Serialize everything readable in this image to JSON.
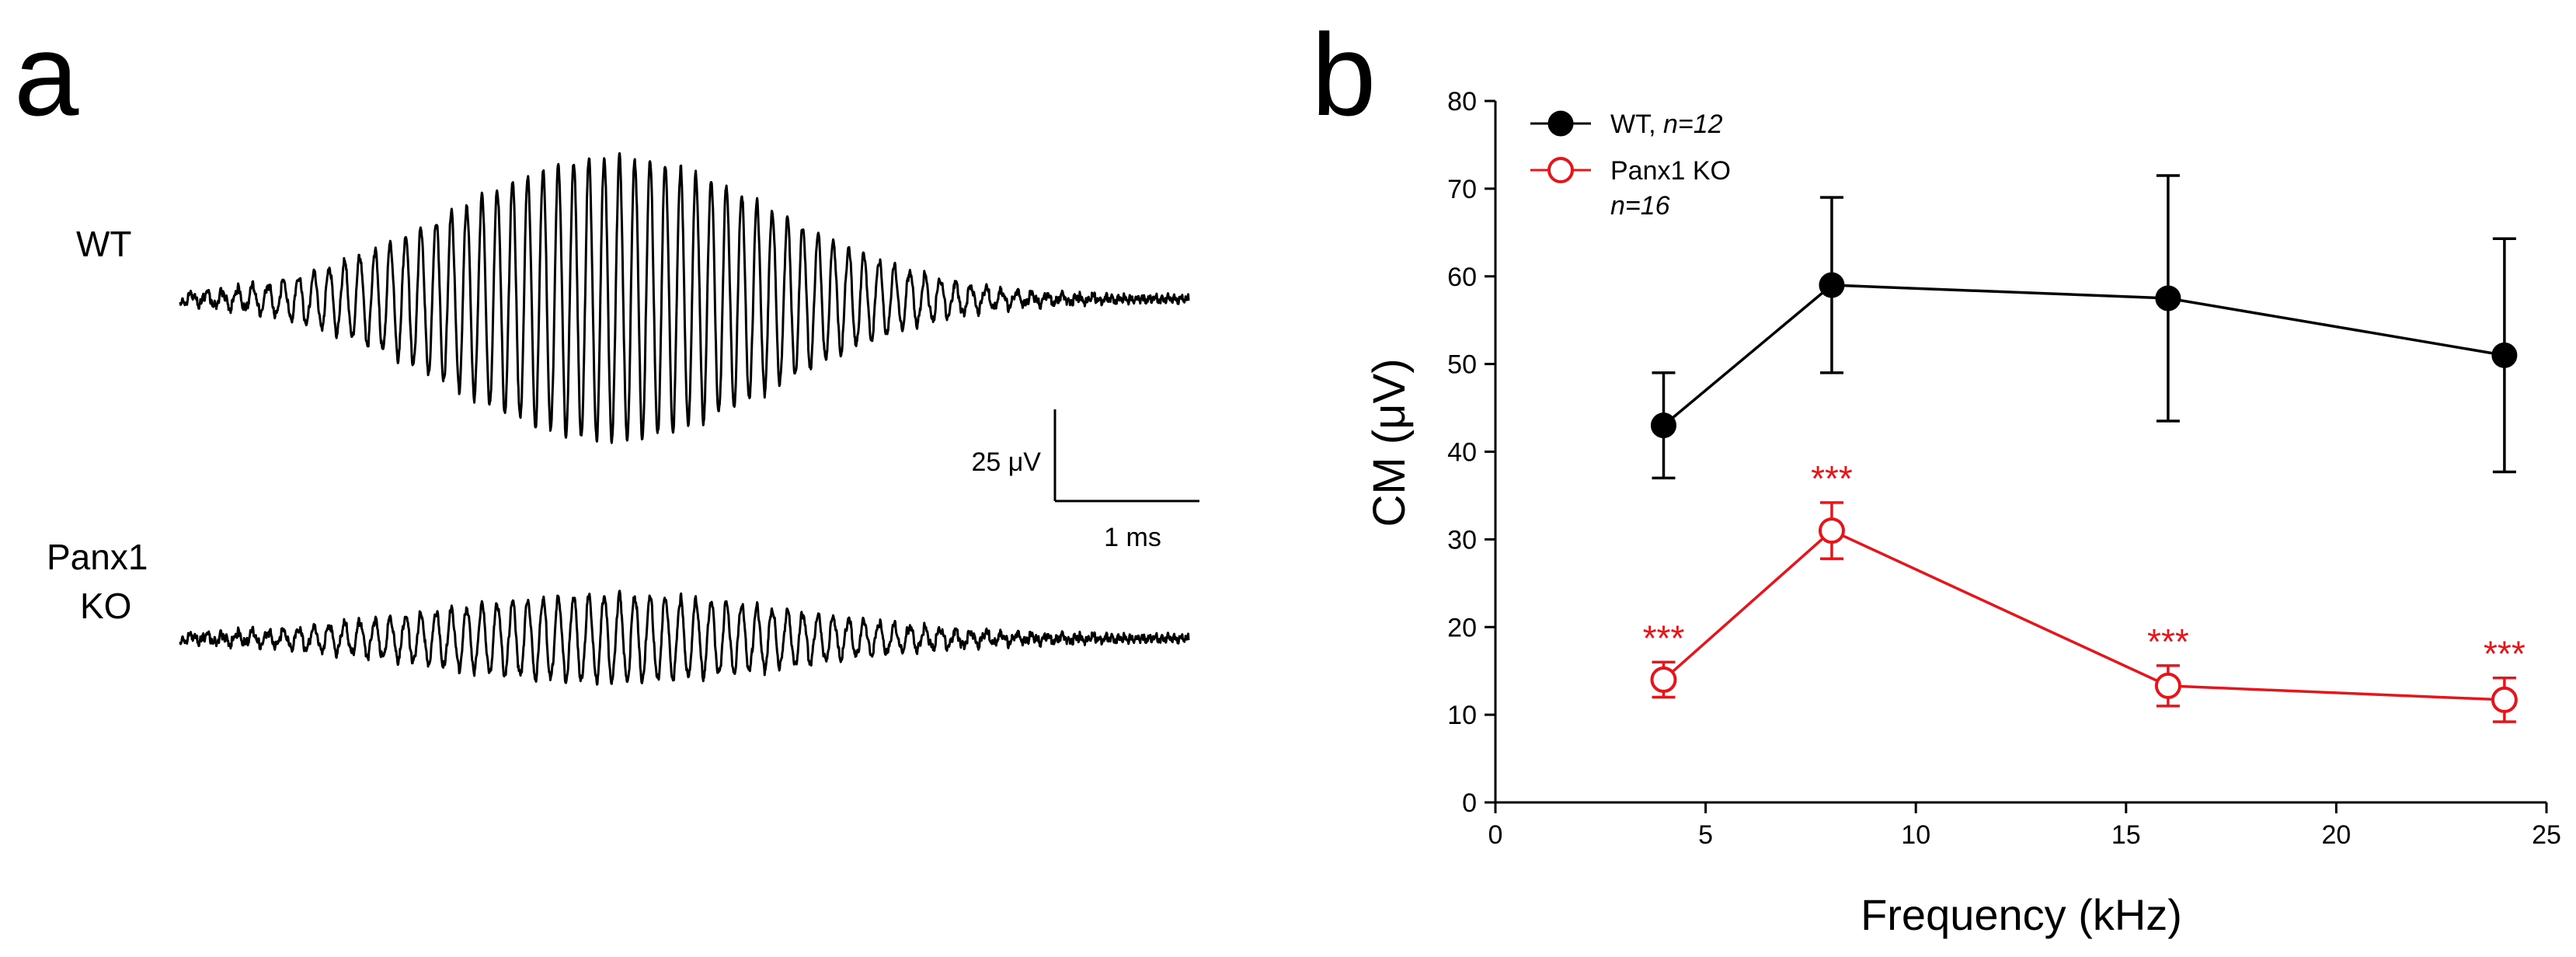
{
  "colors": {
    "wt": "#000000",
    "ko": "#e8141b"
  },
  "panel_a": {
    "label": "a",
    "wt_label": "WT",
    "ko_label_line1": "Panx1",
    "ko_label_line2": "KO",
    "scale_voltage": "25 μV",
    "scale_time": "1 ms"
  },
  "panel_b": {
    "label": "b",
    "legend_wt_name": "WT, ",
    "legend_wt_n": "n=12",
    "legend_ko_name": "Panx1 KO",
    "legend_ko_n": "n=16"
  },
  "chart_data": {
    "type": "line",
    "xlabel": "Frequency (kHz)",
    "ylabel": "CM (μV)",
    "xlim": [
      0,
      25
    ],
    "ylim": [
      0,
      80
    ],
    "xticks": [
      0,
      5,
      10,
      15,
      20,
      25
    ],
    "yticks": [
      0,
      10,
      20,
      30,
      40,
      50,
      60,
      70,
      80
    ],
    "grid": false,
    "legend_position": "top-left",
    "x": [
      4,
      8,
      16,
      24
    ],
    "series": [
      {
        "name": "WT",
        "n": "n=12",
        "color": "#000000",
        "marker": "filled-circle",
        "values": [
          43,
          59,
          57.5,
          51
        ],
        "errors": [
          6,
          10,
          14,
          13.3
        ]
      },
      {
        "name": "Panx1 KO",
        "n": "n=16",
        "color": "#e8141b",
        "marker": "open-circle",
        "values": [
          14,
          31,
          13.3,
          11.7
        ],
        "errors": [
          2,
          3.2,
          2.3,
          2.5
        ]
      }
    ],
    "annotations": [
      {
        "text": "***",
        "x": 4,
        "series": "Panx1 KO"
      },
      {
        "text": "***",
        "x": 8,
        "series": "Panx1 KO"
      },
      {
        "text": "***",
        "x": 16,
        "series": "Panx1 KO"
      },
      {
        "text": "***",
        "x": 24,
        "series": "Panx1 KO"
      }
    ]
  }
}
